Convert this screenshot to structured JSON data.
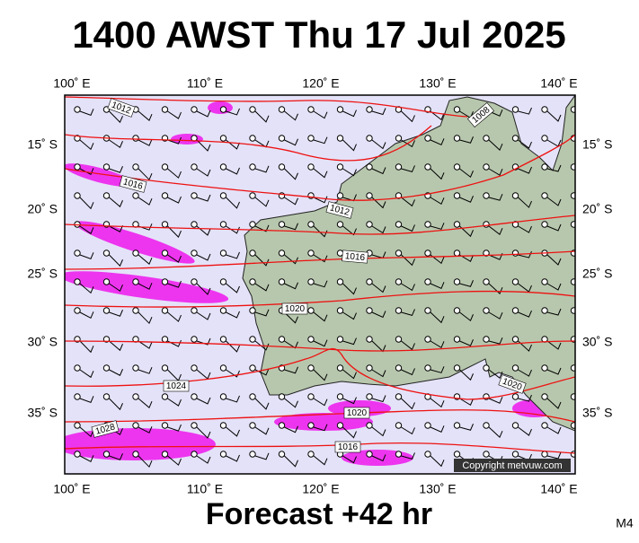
{
  "header": {
    "title": "1400 AWST Thu 17 Jul 2025"
  },
  "map": {
    "lon_labels": [
      "100˚ E",
      "110˚ E",
      "120˚ E",
      "130˚ E",
      "140˚ E"
    ],
    "lat_labels": [
      "15˚ S",
      "20˚ S",
      "25˚ S",
      "30˚ S",
      "35˚ S"
    ],
    "isobar_labels": [
      "1012",
      "1008",
      "1016",
      "1012",
      "1016",
      "1020",
      "1024",
      "1020",
      "1020",
      "1028",
      "1016"
    ],
    "copyright": "Copyright metvuw.com"
  },
  "footer": {
    "forecast": "Forecast +42 hr",
    "code": "M4"
  }
}
